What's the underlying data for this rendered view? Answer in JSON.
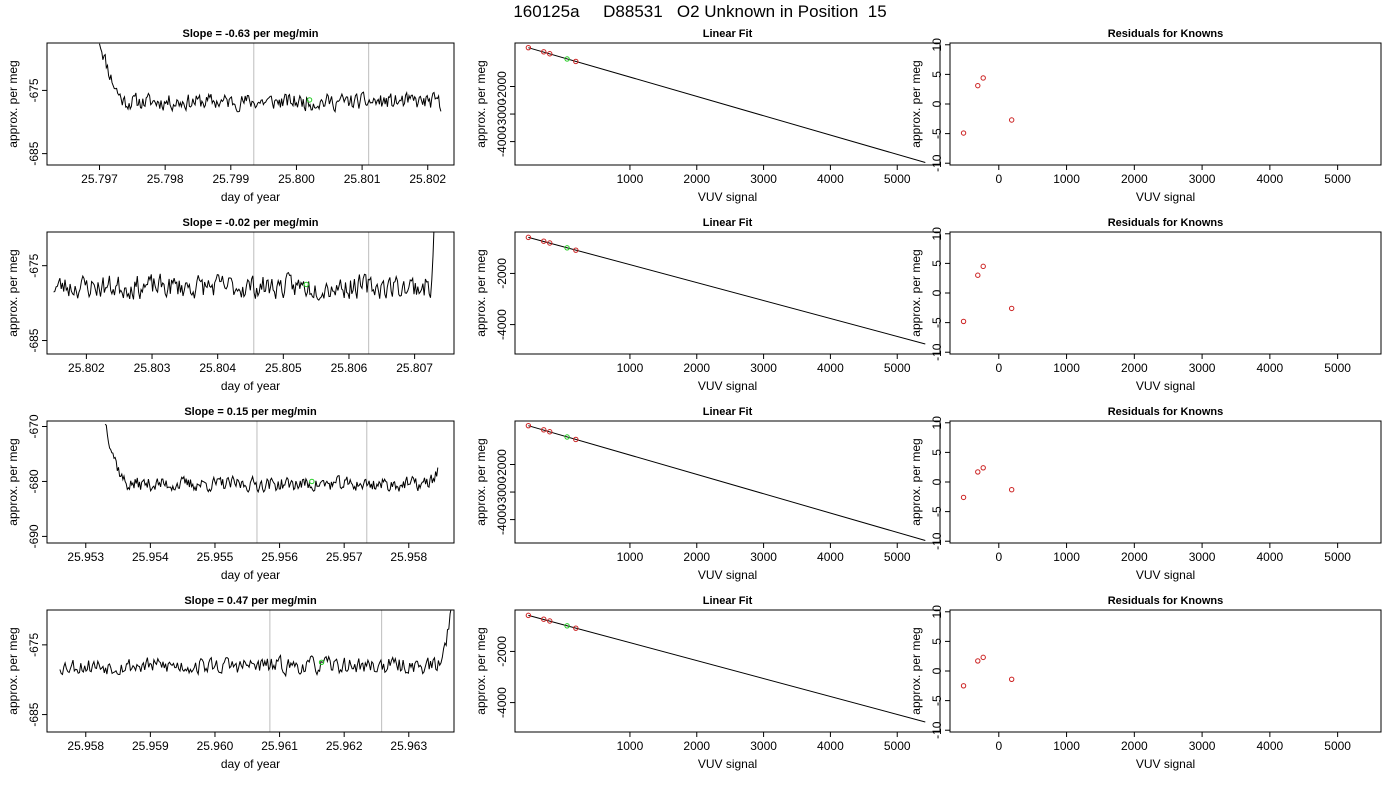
{
  "figure": {
    "title": "160125a     D88531   O2 Unknown in Position  15"
  },
  "chart_data": [
    {
      "type": "line",
      "panel": "trace",
      "title": "Slope =  -0.63  per meg/min",
      "xlabel": "day of year",
      "ylabel": "approx. per meg",
      "xticks": [
        25.797,
        25.798,
        25.799,
        25.8,
        25.801,
        25.802
      ],
      "xtick_labels": [
        "25.797",
        "25.798",
        "25.799",
        "25.800",
        "25.801",
        "25.802"
      ],
      "yticks": [
        -675,
        -685
      ],
      "ytick_labels": [
        "-675",
        "-685"
      ],
      "xlim": [
        25.7962,
        25.8024
      ],
      "ylim": [
        -686.8,
        -667.5
      ],
      "trace": {
        "x0": 25.797,
        "x1": 25.8022,
        "start": -667.0,
        "start_end": 25.7974,
        "base": -676.8,
        "noise": 1.8,
        "end": -678.5,
        "end_start": 25.80215,
        "seed": 11
      },
      "vlines": [
        25.79935,
        25.8011
      ],
      "marker": {
        "x": 25.8002,
        "y": -676.5
      }
    },
    {
      "type": "scatter",
      "panel": "fit",
      "title": "Linear Fit",
      "xlabel": "VUV signal",
      "ylabel": "approx. per meg",
      "xticks": [
        1000,
        2000,
        3000,
        4000,
        5000
      ],
      "xtick_labels": [
        "1000",
        "2000",
        "3000",
        "4000",
        "5000"
      ],
      "yticks": [
        -2000,
        -3000,
        -4000
      ],
      "ytick_labels": [
        "-2000",
        "-3000",
        "-4000"
      ],
      "xlim": [
        -720,
        5640
      ],
      "ylim": [
        -4850,
        -420
      ],
      "line": {
        "x": [
          -520,
          5420
        ],
        "y": [
          -590,
          -4760
        ]
      },
      "points": {
        "x": [
          -520,
          -290,
          -200,
          190
        ],
        "y": [
          -590,
          -740,
          -810,
          -1090
        ]
      },
      "marker": {
        "x": 60,
        "y": -1000
      }
    },
    {
      "type": "scatter",
      "panel": "residuals",
      "title": "Residuals for Knowns",
      "xlabel": "VUV signal",
      "ylabel": "approx. per meg",
      "xticks": [
        0,
        1000,
        2000,
        3000,
        4000,
        5000
      ],
      "xtick_labels": [
        "0",
        "1000",
        "2000",
        "3000",
        "4000",
        "5000"
      ],
      "yticks": [
        -10,
        -5,
        0,
        5,
        10
      ],
      "ytick_labels": [
        "-10",
        "-5",
        "0",
        "5",
        "10"
      ],
      "xlim": [
        -720,
        5640
      ],
      "ylim": [
        -10.3,
        10.3
      ],
      "points": {
        "x": [
          -520,
          -310,
          -230,
          190
        ],
        "y": [
          -4.9,
          3.1,
          4.4,
          -2.7
        ]
      }
    },
    {
      "type": "line",
      "panel": "trace",
      "title": "Slope =  -0.02  per meg/min",
      "xlabel": "day of year",
      "ylabel": "approx. per meg",
      "xticks": [
        25.802,
        25.803,
        25.804,
        25.805,
        25.806,
        25.807
      ],
      "xtick_labels": [
        "25.802",
        "25.803",
        "25.804",
        "25.805",
        "25.806",
        "25.807"
      ],
      "yticks": [
        -675,
        -685
      ],
      "ytick_labels": [
        "-675",
        "-685"
      ],
      "xlim": [
        25.8014,
        25.8076
      ],
      "ylim": [
        -686.8,
        -670.5
      ],
      "trace": {
        "x0": 25.8015,
        "x1": 25.8073,
        "start": -675.0,
        "start_end": 25.8015,
        "base": -677.8,
        "noise": 2.2,
        "end": -669.5,
        "end_start": 25.80725,
        "seed": 23
      },
      "vlines": [
        25.80455,
        25.8063
      ],
      "marker": {
        "x": 25.80535,
        "y": -677.5
      }
    },
    {
      "type": "scatter",
      "panel": "fit",
      "title": "Linear Fit",
      "xlabel": "VUV signal",
      "ylabel": "approx. per meg",
      "xticks": [
        1000,
        2000,
        3000,
        4000,
        5000
      ],
      "xtick_labels": [
        "1000",
        "2000",
        "3000",
        "4000",
        "5000"
      ],
      "yticks": [
        -2000,
        -4000
      ],
      "ytick_labels": [
        "-2000",
        "-4000"
      ],
      "xlim": [
        -720,
        5640
      ],
      "ylim": [
        -5150,
        -380
      ],
      "line": {
        "x": [
          -520,
          5420
        ],
        "y": [
          -590,
          -4760
        ]
      },
      "points": {
        "x": [
          -520,
          -290,
          -200,
          190
        ],
        "y": [
          -590,
          -740,
          -810,
          -1090
        ]
      },
      "marker": {
        "x": 60,
        "y": -1000
      }
    },
    {
      "type": "scatter",
      "panel": "residuals",
      "title": "Residuals for Knowns",
      "xlabel": "VUV signal",
      "ylabel": "approx. per meg",
      "xticks": [
        0,
        1000,
        2000,
        3000,
        4000,
        5000
      ],
      "xtick_labels": [
        "0",
        "1000",
        "2000",
        "3000",
        "4000",
        "5000"
      ],
      "yticks": [
        -10,
        -5,
        0,
        5,
        10
      ],
      "ytick_labels": [
        "-10",
        "-5",
        "0",
        "5",
        "10"
      ],
      "xlim": [
        -720,
        5640
      ],
      "ylim": [
        -10.3,
        10.3
      ],
      "points": {
        "x": [
          -520,
          -310,
          -230,
          190
        ],
        "y": [
          -4.8,
          3.0,
          4.5,
          -2.6
        ]
      }
    },
    {
      "type": "line",
      "panel": "trace",
      "title": "Slope =  0.15  per meg/min",
      "xlabel": "day of year",
      "ylabel": "approx. per meg",
      "xticks": [
        25.953,
        25.954,
        25.955,
        25.956,
        25.957,
        25.958
      ],
      "xtick_labels": [
        "25.953",
        "25.954",
        "25.955",
        "25.956",
        "25.957",
        "25.958"
      ],
      "yticks": [
        -670,
        -680,
        -690
      ],
      "ytick_labels": [
        "-670",
        "-680",
        "-690"
      ],
      "xlim": [
        25.9524,
        25.9587
      ],
      "ylim": [
        -691.2,
        -669.0
      ],
      "trace": {
        "x0": 25.9533,
        "x1": 25.95845,
        "start": -669.0,
        "start_end": 25.95365,
        "base": -680.5,
        "noise": 1.8,
        "end": -678.0,
        "end_start": 25.95825,
        "seed": 37
      },
      "vlines": [
        25.95565,
        25.95735
      ],
      "marker": {
        "x": 25.9565,
        "y": -680.0
      }
    },
    {
      "type": "scatter",
      "panel": "fit",
      "title": "Linear Fit",
      "xlabel": "VUV signal",
      "ylabel": "approx. per meg",
      "xticks": [
        1000,
        2000,
        3000,
        4000,
        5000
      ],
      "xtick_labels": [
        "1000",
        "2000",
        "3000",
        "4000",
        "5000"
      ],
      "yticks": [
        -2000,
        -3000,
        -4000
      ],
      "ytick_labels": [
        "-2000",
        "-3000",
        "-4000"
      ],
      "xlim": [
        -720,
        5640
      ],
      "ylim": [
        -4850,
        -420
      ],
      "line": {
        "x": [
          -520,
          5420
        ],
        "y": [
          -590,
          -4760
        ]
      },
      "points": {
        "x": [
          -520,
          -290,
          -200,
          190
        ],
        "y": [
          -590,
          -740,
          -810,
          -1090
        ]
      },
      "marker": {
        "x": 60,
        "y": -1000
      }
    },
    {
      "type": "scatter",
      "panel": "residuals",
      "title": "Residuals for Knowns",
      "xlabel": "VUV signal",
      "ylabel": "approx. per meg",
      "xticks": [
        0,
        1000,
        2000,
        3000,
        4000,
        5000
      ],
      "xtick_labels": [
        "0",
        "1000",
        "2000",
        "3000",
        "4000",
        "5000"
      ],
      "yticks": [
        -10,
        -5,
        0,
        5,
        10
      ],
      "ytick_labels": [
        "-10",
        "-5",
        "0",
        "5",
        "10"
      ],
      "xlim": [
        -720,
        5640
      ],
      "ylim": [
        -10.3,
        10.3
      ],
      "points": {
        "x": [
          -520,
          -310,
          -230,
          190
        ],
        "y": [
          -2.6,
          1.7,
          2.4,
          -1.3
        ]
      }
    },
    {
      "type": "line",
      "panel": "trace",
      "title": "Slope =  0.47  per meg/min",
      "xlabel": "day of year",
      "ylabel": "approx. per meg",
      "xticks": [
        25.958,
        25.959,
        25.96,
        25.961,
        25.962,
        25.963
      ],
      "xtick_labels": [
        "25.958",
        "25.959",
        "25.960",
        "25.961",
        "25.962",
        "25.963"
      ],
      "yticks": [
        -675,
        -685
      ],
      "ytick_labels": [
        "-675",
        "-685"
      ],
      "xlim": [
        25.9574,
        25.9637
      ],
      "ylim": [
        -687.5,
        -670.0
      ],
      "trace": {
        "x0": 25.9576,
        "x1": 25.96366,
        "start": -678.5,
        "start_end": 25.9576,
        "base": -678.0,
        "noise": 1.7,
        "end": -669.0,
        "end_start": 25.96345,
        "seed": 53
      },
      "vlines": [
        25.96085,
        25.96258
      ],
      "marker": {
        "x": 25.96165,
        "y": -677.5
      }
    },
    {
      "type": "scatter",
      "panel": "fit",
      "title": "Linear Fit",
      "xlabel": "VUV signal",
      "ylabel": "approx. per meg",
      "xticks": [
        1000,
        2000,
        3000,
        4000,
        5000
      ],
      "xtick_labels": [
        "1000",
        "2000",
        "3000",
        "4000",
        "5000"
      ],
      "yticks": [
        -2000,
        -4000
      ],
      "ytick_labels": [
        "-2000",
        "-4000"
      ],
      "xlim": [
        -720,
        5640
      ],
      "ylim": [
        -5150,
        -380
      ],
      "line": {
        "x": [
          -520,
          5420
        ],
        "y": [
          -590,
          -4760
        ]
      },
      "points": {
        "x": [
          -520,
          -290,
          -200,
          190
        ],
        "y": [
          -590,
          -740,
          -810,
          -1090
        ]
      },
      "marker": {
        "x": 60,
        "y": -1000
      }
    },
    {
      "type": "scatter",
      "panel": "residuals",
      "title": "Residuals for Knowns",
      "xlabel": "VUV signal",
      "ylabel": "approx. per meg",
      "xticks": [
        0,
        1000,
        2000,
        3000,
        4000,
        5000
      ],
      "xtick_labels": [
        "0",
        "1000",
        "2000",
        "3000",
        "4000",
        "5000"
      ],
      "yticks": [
        -10,
        -5,
        0,
        5,
        10
      ],
      "ytick_labels": [
        "-10",
        "-5",
        "0",
        "5",
        "10"
      ],
      "xlim": [
        -720,
        5640
      ],
      "ylim": [
        -10.3,
        10.3
      ],
      "points": {
        "x": [
          -520,
          -310,
          -230,
          190
        ],
        "y": [
          -2.5,
          1.7,
          2.3,
          -1.4
        ]
      }
    }
  ]
}
